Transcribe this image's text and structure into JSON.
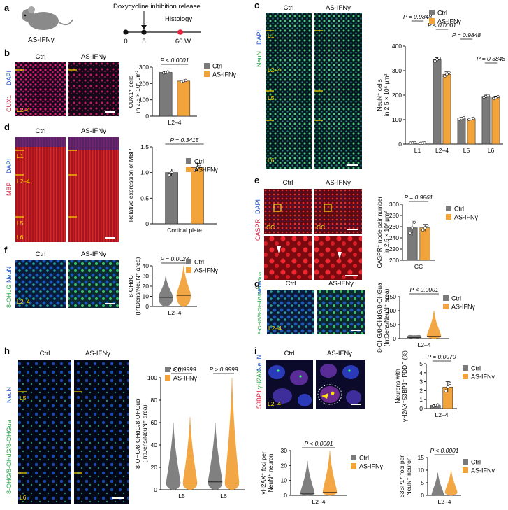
{
  "colors": {
    "ctrl": "#7a7a7a",
    "as": "#f2a33a",
    "red_p": "#e8203a",
    "sig": "#d62a2a"
  },
  "panel_labels": {
    "a": "a",
    "b": "b",
    "c": "c",
    "d": "d",
    "e": "e",
    "f": "f",
    "g": "g",
    "h": "h",
    "i": "i"
  },
  "legend": {
    "ctrl": "Ctrl",
    "as": "AS-IFNγ"
  },
  "panel_a": {
    "mouse_label": "AS-IFNγ",
    "release_label": "Doxycycline inhibition release",
    "histology_label": "Histology",
    "ticks": [
      "0",
      "8",
      "60 W"
    ]
  },
  "micro": {
    "b": {
      "ctrl": "Ctrl",
      "as": "AS-IFNγ",
      "stain_red": "CUX1",
      "stain_blue": "DAPI",
      "layer": "L2–4"
    },
    "c": {
      "ctrl": "Ctrl",
      "as": "AS-IFNγ",
      "stain_green": "NeuN",
      "stain_blue": "DAPI",
      "layers": [
        "L1",
        "L2–4",
        "L5",
        "L6"
      ]
    },
    "d": {
      "ctrl": "Ctrl",
      "as": "AS-IFNγ",
      "stain_red": "MBP",
      "stain_blue": "DAPI",
      "layers": [
        "L1",
        "L2–4",
        "L5",
        "L6"
      ]
    },
    "e": {
      "ctrl": "Ctrl",
      "as": "AS-IFNγ",
      "stain_red": "CASPR",
      "stain_blue": "DAPI",
      "region": "CC"
    },
    "f": {
      "ctrl": "Ctrl",
      "as": "AS-IFNγ",
      "stain_green": "8-OHdG",
      "stain_blue": "NeuN",
      "layer": "L2–4"
    },
    "g": {
      "ctrl": "Ctrl",
      "as": "AS-IFNγ",
      "stain_green": "8-OHG/8-OHdG/8-OHGua",
      "stain_blue": "NeuN",
      "layer": "L2–4"
    },
    "h": {
      "ctrl": "Ctrl",
      "as": "AS-IFNγ",
      "stain_green": "8-OHG/8-OHdG/8-OHGua",
      "stain_blue": "NeuN",
      "layers": [
        "L5",
        "L6"
      ]
    },
    "i": {
      "ctrl": "Ctrl",
      "as": "AS-IFNγ",
      "stain_red": "53BP1",
      "stain_green": "γH2AX",
      "stain_blue": "NeuN",
      "layer": "L2–4"
    }
  },
  "chart_data": [
    {
      "id": "b",
      "type": "bar",
      "title": "",
      "ylabel_lines": [
        "CUX1⁺ cells",
        "in 2.5 × 10⁵ μm²"
      ],
      "categories": [
        "L2–4"
      ],
      "ylim": [
        0,
        300
      ],
      "yticks": [
        "0",
        "100",
        "200",
        "300"
      ],
      "series": [
        {
          "name": "Ctrl",
          "values": [
            268
          ],
          "err": [
            5
          ]
        },
        {
          "name": "AS-IFNγ",
          "values": [
            215
          ],
          "err": [
            6
          ]
        }
      ],
      "pvals": [
        "P < 0.0001"
      ]
    },
    {
      "id": "c",
      "type": "bar",
      "ylabel_lines": [
        "NeuN⁺ cells",
        "in 2.5 × 10⁵ μm²"
      ],
      "categories": [
        "L1",
        "L2–4",
        "L5",
        "L6"
      ],
      "ylim": [
        0,
        400
      ],
      "yticks": [
        "0",
        "100",
        "200",
        "300",
        "400"
      ],
      "series": [
        {
          "name": "Ctrl",
          "values": [
            5,
            345,
            105,
            195
          ],
          "err": [
            1,
            8,
            4,
            5
          ]
        },
        {
          "name": "AS-IFNγ",
          "values": [
            4,
            285,
            103,
            190
          ],
          "err": [
            1,
            10,
            4,
            6
          ]
        }
      ],
      "pvals": [
        "P = 0.9848",
        "P < 0.0001",
        "P = 0.9848",
        "P = 0.3848"
      ]
    },
    {
      "id": "d",
      "type": "bar",
      "ylabel_lines": [
        "Relative expression of MBP"
      ],
      "categories": [
        "Cortical plate"
      ],
      "ylim": [
        0,
        1.5
      ],
      "yticks": [
        "0",
        "0.5",
        "1.0",
        "1.5"
      ],
      "series": [
        {
          "name": "Ctrl",
          "values": [
            1.0
          ],
          "err": [
            0.07
          ]
        },
        {
          "name": "AS-IFNγ",
          "values": [
            1.1
          ],
          "err": [
            0.08
          ]
        }
      ],
      "pvals": [
        "P = 0.3415"
      ]
    },
    {
      "id": "e",
      "type": "bar",
      "ylabel_lines": [
        "CASPR⁺ node pair number",
        "in 2.5 × 10³ μm²"
      ],
      "categories": [
        "CC"
      ],
      "ylim": [
        200,
        300
      ],
      "yticks": [
        "200",
        "220",
        "240",
        "260",
        "280",
        "300"
      ],
      "series": [
        {
          "name": "Ctrl",
          "values": [
            258
          ],
          "err": [
            14
          ]
        },
        {
          "name": "AS-IFNγ",
          "values": [
            258
          ],
          "err": [
            6
          ]
        }
      ],
      "pvals": [
        "P = 0.9861"
      ]
    },
    {
      "id": "f",
      "type": "violin",
      "ylabel_lines": [
        "8-OHdG",
        "(IntDens/NeuN⁺ area)"
      ],
      "categories": [
        "L2–4"
      ],
      "ylim": [
        0,
        40
      ],
      "yticks": [
        "0",
        "10",
        "20",
        "30",
        "40"
      ],
      "series": [
        {
          "name": "Ctrl",
          "median": [
            9
          ],
          "max": [
            30
          ]
        },
        {
          "name": "AS-IFNγ",
          "median": [
            11
          ],
          "max": [
            40
          ]
        }
      ],
      "pvals": [
        "P = 0.0027"
      ]
    },
    {
      "id": "g",
      "type": "violin",
      "ylabel_lines": [
        "8-OHG/8-OHdG/8-OHGua",
        "(IntDens/NeuN⁺ area)"
      ],
      "categories": [
        "L2–4"
      ],
      "ylim": [
        0,
        150
      ],
      "yticks": [
        "0",
        "50",
        "100",
        "150"
      ],
      "series": [
        {
          "name": "Ctrl",
          "median": [
            4
          ],
          "max": [
            12
          ]
        },
        {
          "name": "AS-IFNγ",
          "median": [
            8
          ],
          "max": [
            100
          ]
        }
      ],
      "pvals": [
        "P < 0.0001"
      ]
    },
    {
      "id": "h",
      "type": "violin",
      "ylabel_lines": [
        "8-OHG/8-OHdG/8-OHGua",
        "(IntDens/NeuN⁺ area)"
      ],
      "categories": [
        "L5",
        "L6"
      ],
      "ylim": [
        0,
        100
      ],
      "yticks": [
        "0",
        "20",
        "40",
        "60",
        "80",
        "100"
      ],
      "series": [
        {
          "name": "Ctrl",
          "median": [
            6,
            7
          ],
          "max": [
            60,
            60
          ]
        },
        {
          "name": "AS-IFNγ",
          "median": [
            6,
            6
          ],
          "max": [
            65,
            100
          ]
        }
      ],
      "pvals": [
        "P > 0.9999",
        "P > 0.9999"
      ]
    },
    {
      "id": "i1",
      "type": "bar",
      "ylabel_lines": [
        "Neurons with",
        "γH2AX⁺53BP1⁺ PDDF (%)"
      ],
      "categories": [
        "L2–4"
      ],
      "ylim": [
        0,
        5
      ],
      "yticks": [
        "0",
        "1",
        "2",
        "3",
        "4",
        "5"
      ],
      "series": [
        {
          "name": "Ctrl",
          "values": [
            0.35
          ],
          "err": [
            0.1
          ]
        },
        {
          "name": "AS-IFNγ",
          "values": [
            2.4
          ],
          "err": [
            0.6
          ]
        }
      ],
      "pvals": [
        "P = 0.0070"
      ]
    },
    {
      "id": "i2",
      "type": "violin",
      "ylabel_lines": [
        "γH2AX⁺ foci per",
        "NeuN⁺ neuron"
      ],
      "categories": [
        "L2–4"
      ],
      "ylim": [
        0,
        30
      ],
      "yticks": [
        "0",
        "10",
        "20",
        "30"
      ],
      "series": [
        {
          "name": "Ctrl",
          "median": [
            1
          ],
          "max": [
            23
          ]
        },
        {
          "name": "AS-IFNγ",
          "median": [
            2
          ],
          "max": [
            30
          ]
        }
      ],
      "pvals": [
        "P < 0.0001"
      ]
    },
    {
      "id": "i3",
      "type": "violin",
      "ylabel_lines": [
        "53BP1⁺ foci per",
        "NeuN⁺ neuron"
      ],
      "categories": [
        "L2–4"
      ],
      "ylim": [
        0,
        15
      ],
      "yticks": [
        "0",
        "5",
        "10",
        "15"
      ],
      "series": [
        {
          "name": "Ctrl",
          "median": [
            0
          ],
          "max": [
            9
          ]
        },
        {
          "name": "AS-IFNγ",
          "median": [
            1
          ],
          "max": [
            10
          ]
        }
      ],
      "pvals": [
        "P < 0.0001"
      ]
    }
  ]
}
